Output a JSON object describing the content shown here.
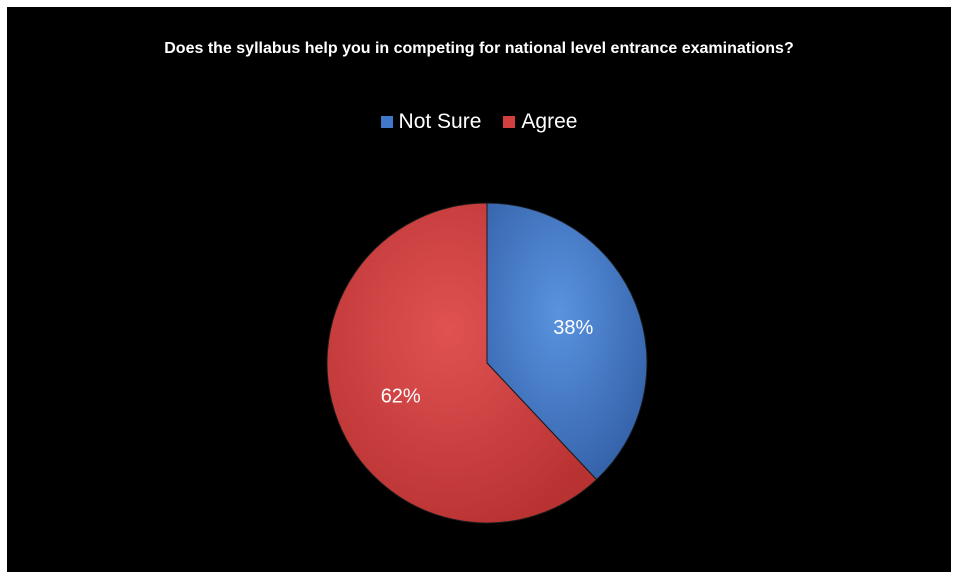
{
  "chart_data": {
    "type": "pie",
    "title": "Does the syllabus help you in competing for national level entrance examinations?",
    "legend_position": "top",
    "slices": [
      {
        "name": "Not Sure",
        "value": 38,
        "label": "38%",
        "color": "#4178c9"
      },
      {
        "name": "Agree",
        "value": 62,
        "label": "62%",
        "color": "#d23f3f"
      }
    ]
  }
}
